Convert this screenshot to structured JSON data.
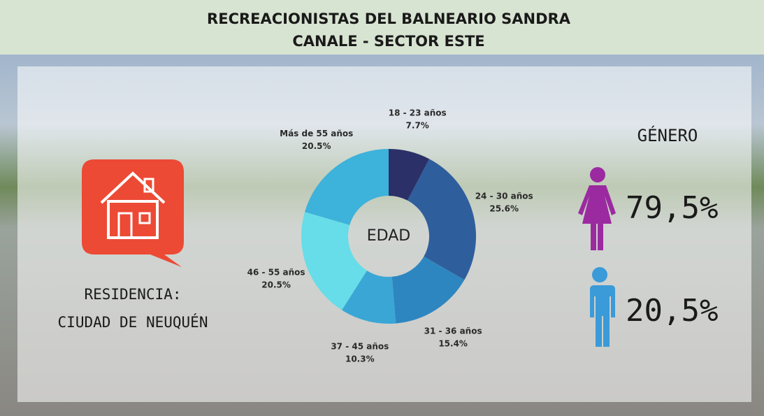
{
  "header": {
    "title_line1": "RECREACIONISTAS DEL BALNEARIO SANDRA",
    "title_line2": "CANALE - SECTOR ESTE"
  },
  "residence": {
    "label": "RESIDENCIA:",
    "value": "CIUDAD DE NEUQUÉN"
  },
  "gender": {
    "title": "GÉNERO",
    "female": "79,5%",
    "male": "20,5%"
  },
  "chart_data": {
    "type": "donut",
    "center_label": "EDAD",
    "categories": [
      "18 - 23 años",
      "24 - 30 años",
      "31 - 36 años",
      "37 - 45 años",
      "46 - 55 años",
      "Más de 55 años"
    ],
    "values": [
      7.7,
      25.6,
      15.4,
      10.3,
      20.5,
      20.5
    ],
    "value_labels": [
      "7.7%",
      "25.6%",
      "15.4%",
      "10.3%",
      "20.5%",
      "20.5%"
    ],
    "colors": [
      "#2c3068",
      "#2f5e9c",
      "#2e86c0",
      "#3aa6d6",
      "#66dde9",
      "#3db2da"
    ]
  }
}
